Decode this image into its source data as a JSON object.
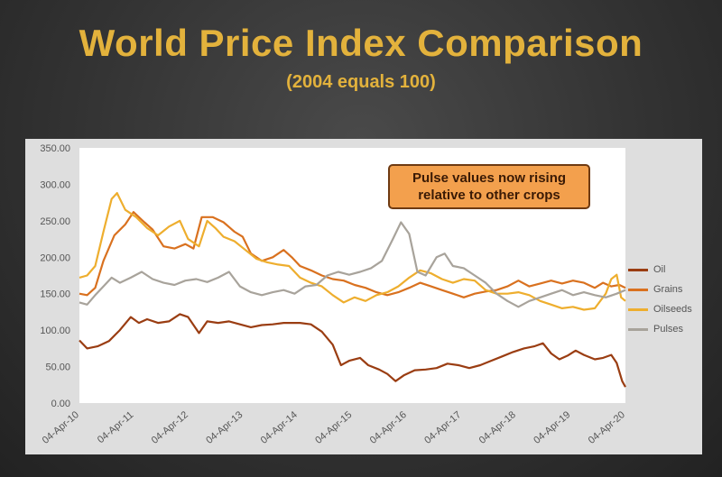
{
  "slide": {
    "title": "World Price Index Comparison",
    "subtitle": "(2004 equals 100)"
  },
  "annotation": "Pulse values now rising relative to other crops",
  "chart_data": {
    "type": "line",
    "ylim": [
      0,
      350
    ],
    "yticks": [
      "0.00",
      "50.00",
      "100.00",
      "150.00",
      "200.00",
      "250.00",
      "300.00",
      "350.00"
    ],
    "xticks": [
      "04-Apr-10",
      "04-Apr-11",
      "04-Apr-12",
      "04-Apr-13",
      "04-Apr-14",
      "04-Apr-15",
      "04-Apr-16",
      "04-Apr-17",
      "04-Apr-18",
      "04-Apr-19",
      "04-Apr-20"
    ],
    "xlim": [
      2010.26,
      2020.26
    ],
    "legend_position": "right",
    "grid": false,
    "series": [
      {
        "name": "Oil",
        "color": "#9a3d12",
        "points": [
          [
            2010.26,
            86
          ],
          [
            2010.4,
            75
          ],
          [
            2010.6,
            78
          ],
          [
            2010.8,
            85
          ],
          [
            2011.0,
            100
          ],
          [
            2011.2,
            118
          ],
          [
            2011.35,
            110
          ],
          [
            2011.5,
            115
          ],
          [
            2011.7,
            110
          ],
          [
            2011.9,
            112
          ],
          [
            2012.1,
            122
          ],
          [
            2012.25,
            118
          ],
          [
            2012.45,
            96
          ],
          [
            2012.6,
            112
          ],
          [
            2012.8,
            110
          ],
          [
            2013.0,
            112
          ],
          [
            2013.2,
            108
          ],
          [
            2013.4,
            104
          ],
          [
            2013.6,
            107
          ],
          [
            2013.8,
            108
          ],
          [
            2014.0,
            110
          ],
          [
            2014.3,
            110
          ],
          [
            2014.5,
            108
          ],
          [
            2014.7,
            98
          ],
          [
            2014.9,
            80
          ],
          [
            2015.05,
            52
          ],
          [
            2015.2,
            58
          ],
          [
            2015.4,
            62
          ],
          [
            2015.55,
            52
          ],
          [
            2015.75,
            46
          ],
          [
            2015.9,
            40
          ],
          [
            2016.05,
            30
          ],
          [
            2016.2,
            38
          ],
          [
            2016.4,
            45
          ],
          [
            2016.6,
            46
          ],
          [
            2016.8,
            48
          ],
          [
            2017.0,
            54
          ],
          [
            2017.2,
            52
          ],
          [
            2017.4,
            48
          ],
          [
            2017.6,
            52
          ],
          [
            2017.8,
            58
          ],
          [
            2018.0,
            64
          ],
          [
            2018.2,
            70
          ],
          [
            2018.4,
            75
          ],
          [
            2018.6,
            78
          ],
          [
            2018.75,
            82
          ],
          [
            2018.9,
            68
          ],
          [
            2019.05,
            60
          ],
          [
            2019.2,
            65
          ],
          [
            2019.35,
            72
          ],
          [
            2019.5,
            66
          ],
          [
            2019.7,
            60
          ],
          [
            2019.85,
            62
          ],
          [
            2020.0,
            66
          ],
          [
            2020.1,
            55
          ],
          [
            2020.2,
            30
          ],
          [
            2020.26,
            22
          ]
        ]
      },
      {
        "name": "Grains",
        "color": "#d9711f",
        "points": [
          [
            2010.26,
            150
          ],
          [
            2010.4,
            148
          ],
          [
            2010.55,
            158
          ],
          [
            2010.7,
            195
          ],
          [
            2010.9,
            230
          ],
          [
            2011.1,
            245
          ],
          [
            2011.25,
            262
          ],
          [
            2011.45,
            248
          ],
          [
            2011.6,
            238
          ],
          [
            2011.8,
            215
          ],
          [
            2012.0,
            212
          ],
          [
            2012.2,
            218
          ],
          [
            2012.35,
            212
          ],
          [
            2012.5,
            255
          ],
          [
            2012.7,
            255
          ],
          [
            2012.9,
            248
          ],
          [
            2013.1,
            235
          ],
          [
            2013.25,
            228
          ],
          [
            2013.4,
            205
          ],
          [
            2013.6,
            195
          ],
          [
            2013.8,
            200
          ],
          [
            2014.0,
            210
          ],
          [
            2014.15,
            200
          ],
          [
            2014.3,
            188
          ],
          [
            2014.5,
            182
          ],
          [
            2014.7,
            175
          ],
          [
            2014.9,
            170
          ],
          [
            2015.1,
            168
          ],
          [
            2015.3,
            162
          ],
          [
            2015.5,
            158
          ],
          [
            2015.7,
            152
          ],
          [
            2015.9,
            148
          ],
          [
            2016.1,
            152
          ],
          [
            2016.3,
            158
          ],
          [
            2016.5,
            165
          ],
          [
            2016.7,
            160
          ],
          [
            2016.9,
            155
          ],
          [
            2017.1,
            150
          ],
          [
            2017.3,
            145
          ],
          [
            2017.5,
            150
          ],
          [
            2017.7,
            153
          ],
          [
            2017.9,
            155
          ],
          [
            2018.1,
            160
          ],
          [
            2018.3,
            168
          ],
          [
            2018.5,
            160
          ],
          [
            2018.7,
            164
          ],
          [
            2018.9,
            168
          ],
          [
            2019.1,
            164
          ],
          [
            2019.3,
            168
          ],
          [
            2019.5,
            165
          ],
          [
            2019.7,
            158
          ],
          [
            2019.85,
            165
          ],
          [
            2020.0,
            160
          ],
          [
            2020.15,
            162
          ],
          [
            2020.26,
            158
          ]
        ]
      },
      {
        "name": "Oilseeds",
        "color": "#eeae2e",
        "points": [
          [
            2010.26,
            172
          ],
          [
            2010.4,
            175
          ],
          [
            2010.55,
            188
          ],
          [
            2010.7,
            235
          ],
          [
            2010.85,
            280
          ],
          [
            2010.95,
            288
          ],
          [
            2011.1,
            265
          ],
          [
            2011.3,
            255
          ],
          [
            2011.5,
            240
          ],
          [
            2011.7,
            230
          ],
          [
            2011.9,
            242
          ],
          [
            2012.1,
            250
          ],
          [
            2012.25,
            225
          ],
          [
            2012.45,
            215
          ],
          [
            2012.6,
            250
          ],
          [
            2012.75,
            240
          ],
          [
            2012.9,
            228
          ],
          [
            2013.1,
            222
          ],
          [
            2013.3,
            210
          ],
          [
            2013.5,
            198
          ],
          [
            2013.7,
            193
          ],
          [
            2013.9,
            190
          ],
          [
            2014.1,
            188
          ],
          [
            2014.3,
            172
          ],
          [
            2014.5,
            165
          ],
          [
            2014.7,
            160
          ],
          [
            2014.9,
            148
          ],
          [
            2015.1,
            138
          ],
          [
            2015.3,
            145
          ],
          [
            2015.5,
            140
          ],
          [
            2015.7,
            148
          ],
          [
            2015.9,
            152
          ],
          [
            2016.1,
            160
          ],
          [
            2016.3,
            172
          ],
          [
            2016.5,
            182
          ],
          [
            2016.7,
            178
          ],
          [
            2016.9,
            170
          ],
          [
            2017.1,
            165
          ],
          [
            2017.3,
            170
          ],
          [
            2017.5,
            168
          ],
          [
            2017.7,
            155
          ],
          [
            2017.9,
            150
          ],
          [
            2018.1,
            150
          ],
          [
            2018.3,
            152
          ],
          [
            2018.5,
            148
          ],
          [
            2018.7,
            140
          ],
          [
            2018.9,
            135
          ],
          [
            2019.1,
            130
          ],
          [
            2019.3,
            132
          ],
          [
            2019.5,
            128
          ],
          [
            2019.7,
            130
          ],
          [
            2019.9,
            150
          ],
          [
            2020.0,
            170
          ],
          [
            2020.1,
            176
          ],
          [
            2020.18,
            145
          ],
          [
            2020.26,
            140
          ]
        ]
      },
      {
        "name": "Pulses",
        "color": "#a8a39b",
        "points": [
          [
            2010.26,
            138
          ],
          [
            2010.4,
            135
          ],
          [
            2010.55,
            148
          ],
          [
            2010.7,
            160
          ],
          [
            2010.85,
            172
          ],
          [
            2011.0,
            165
          ],
          [
            2011.2,
            172
          ],
          [
            2011.4,
            180
          ],
          [
            2011.6,
            170
          ],
          [
            2011.8,
            165
          ],
          [
            2012.0,
            162
          ],
          [
            2012.2,
            168
          ],
          [
            2012.4,
            170
          ],
          [
            2012.6,
            166
          ],
          [
            2012.8,
            172
          ],
          [
            2013.0,
            180
          ],
          [
            2013.2,
            160
          ],
          [
            2013.4,
            152
          ],
          [
            2013.6,
            148
          ],
          [
            2013.8,
            152
          ],
          [
            2014.0,
            155
          ],
          [
            2014.2,
            150
          ],
          [
            2014.4,
            160
          ],
          [
            2014.6,
            162
          ],
          [
            2014.8,
            175
          ],
          [
            2015.0,
            180
          ],
          [
            2015.2,
            176
          ],
          [
            2015.4,
            180
          ],
          [
            2015.6,
            185
          ],
          [
            2015.8,
            195
          ],
          [
            2016.0,
            225
          ],
          [
            2016.15,
            248
          ],
          [
            2016.3,
            232
          ],
          [
            2016.45,
            180
          ],
          [
            2016.6,
            175
          ],
          [
            2016.8,
            200
          ],
          [
            2016.95,
            205
          ],
          [
            2017.1,
            188
          ],
          [
            2017.3,
            185
          ],
          [
            2017.5,
            175
          ],
          [
            2017.7,
            165
          ],
          [
            2017.9,
            150
          ],
          [
            2018.1,
            140
          ],
          [
            2018.3,
            132
          ],
          [
            2018.5,
            140
          ],
          [
            2018.7,
            145
          ],
          [
            2018.9,
            150
          ],
          [
            2019.1,
            155
          ],
          [
            2019.3,
            148
          ],
          [
            2019.5,
            152
          ],
          [
            2019.7,
            148
          ],
          [
            2019.9,
            145
          ],
          [
            2020.1,
            150
          ],
          [
            2020.26,
            155
          ]
        ]
      }
    ]
  }
}
